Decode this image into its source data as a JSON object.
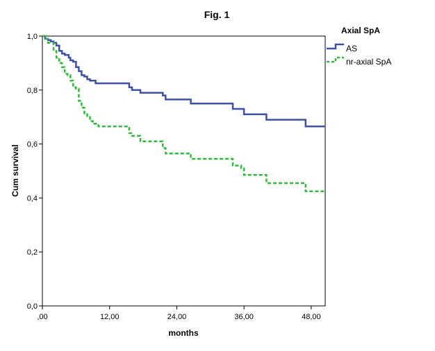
{
  "chart_data": {
    "type": "line",
    "title": "Fig. 1",
    "xlabel": "months",
    "ylabel": "Cum survival",
    "xlim": [
      0,
      50.5
    ],
    "ylim": [
      0,
      1.0
    ],
    "x_ticks": [
      ",00",
      "12,00",
      "24,00",
      "36,00",
      "48,00"
    ],
    "x_tick_values": [
      0,
      12,
      24,
      36,
      48
    ],
    "y_ticks": [
      "0,0",
      "0,2",
      "0,4",
      "0,6",
      "0,8",
      "1,0"
    ],
    "y_tick_values": [
      0,
      0.2,
      0.4,
      0.6,
      0.8,
      1.0
    ],
    "legend_title": "Axial SpA",
    "legend_position": "top-right outside",
    "grid": false,
    "series": [
      {
        "name": "AS",
        "color": "#3f51a5",
        "style": "solid",
        "steps": [
          [
            0,
            1.0
          ],
          [
            0.5,
            0.99
          ],
          [
            1.0,
            0.985
          ],
          [
            1.5,
            0.98
          ],
          [
            2.0,
            0.975
          ],
          [
            2.5,
            0.965
          ],
          [
            3.0,
            0.945
          ],
          [
            3.5,
            0.935
          ],
          [
            4.0,
            0.93
          ],
          [
            4.7,
            0.92
          ],
          [
            5.0,
            0.91
          ],
          [
            5.5,
            0.905
          ],
          [
            6.0,
            0.885
          ],
          [
            6.5,
            0.87
          ],
          [
            7.0,
            0.855
          ],
          [
            7.5,
            0.85
          ],
          [
            8.0,
            0.84
          ],
          [
            8.5,
            0.835
          ],
          [
            9.5,
            0.825
          ],
          [
            15.5,
            0.81
          ],
          [
            16.0,
            0.8
          ],
          [
            17.5,
            0.79
          ],
          [
            21.5,
            0.78
          ],
          [
            22.0,
            0.765
          ],
          [
            26.5,
            0.75
          ],
          [
            34.0,
            0.73
          ],
          [
            36.0,
            0.71
          ],
          [
            40.0,
            0.69
          ],
          [
            47.0,
            0.665
          ],
          [
            50.5,
            0.665
          ]
        ]
      },
      {
        "name": "nr-axial SpA",
        "color": "#33b83f",
        "style": "dashed",
        "steps": [
          [
            0,
            1.0
          ],
          [
            0.5,
            0.99
          ],
          [
            1.0,
            0.975
          ],
          [
            2.0,
            0.945
          ],
          [
            2.5,
            0.92
          ],
          [
            3.0,
            0.9
          ],
          [
            3.5,
            0.885
          ],
          [
            4.0,
            0.86
          ],
          [
            4.5,
            0.855
          ],
          [
            5.0,
            0.835
          ],
          [
            5.5,
            0.81
          ],
          [
            6.0,
            0.805
          ],
          [
            6.5,
            0.76
          ],
          [
            7.0,
            0.735
          ],
          [
            7.5,
            0.71
          ],
          [
            8.0,
            0.7
          ],
          [
            8.5,
            0.685
          ],
          [
            9.0,
            0.675
          ],
          [
            10.0,
            0.665
          ],
          [
            15.5,
            0.64
          ],
          [
            16.0,
            0.63
          ],
          [
            17.5,
            0.61
          ],
          [
            21.5,
            0.585
          ],
          [
            22.0,
            0.565
          ],
          [
            26.5,
            0.545
          ],
          [
            34.0,
            0.52
          ],
          [
            35.5,
            0.51
          ],
          [
            36.0,
            0.485
          ],
          [
            40.0,
            0.455
          ],
          [
            47.0,
            0.425
          ],
          [
            50.5,
            0.425
          ]
        ]
      }
    ]
  }
}
